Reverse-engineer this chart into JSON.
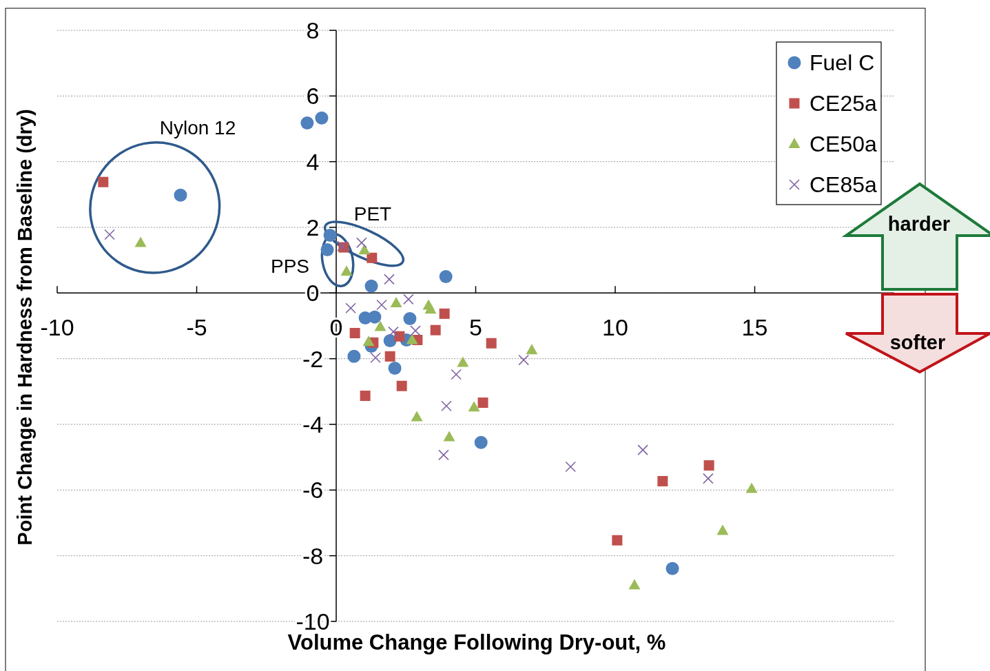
{
  "chart_data": {
    "type": "scatter",
    "xlabel": "Volume Change Following Dry-out, %",
    "ylabel": "Point Change in Hardness from Baseline (dry)",
    "xlim": [
      -10,
      20
    ],
    "ylim": [
      -10,
      8
    ],
    "xticks": [
      -10,
      -5,
      0,
      5,
      10,
      15
    ],
    "yticks": [
      -10,
      -8,
      -6,
      -4,
      -2,
      0,
      2,
      4,
      6,
      8
    ],
    "grid": "y",
    "legend": "top right",
    "series": [
      {
        "name": "Fuel C",
        "color": "#4f81bd",
        "marker": "circle",
        "x": [
          -1.04,
          -0.52,
          -5.58,
          -0.22,
          -0.32,
          1.26,
          3.93,
          1.04,
          1.38,
          2.64,
          1.93,
          2.52,
          1.26,
          0.64,
          2.1,
          5.19,
          12.05
        ],
        "values": [
          5.18,
          5.33,
          2.98,
          1.76,
          1.32,
          0.21,
          0.5,
          -0.76,
          -0.73,
          -0.78,
          -1.45,
          -1.43,
          -1.62,
          -1.93,
          -2.29,
          -4.55,
          -8.39
        ]
      },
      {
        "name": "CE25a",
        "color": "#c0504d",
        "marker": "square",
        "x": [
          -8.35,
          0.27,
          1.28,
          3.88,
          3.56,
          0.67,
          2.27,
          2.91,
          1.33,
          5.56,
          1.93,
          1.04,
          2.35,
          5.26,
          13.36,
          11.7,
          10.07
        ],
        "values": [
          3.38,
          1.39,
          1.07,
          -0.63,
          -1.13,
          -1.22,
          -1.32,
          -1.43,
          -1.51,
          -1.53,
          -1.93,
          -3.13,
          -2.83,
          -3.34,
          -5.25,
          -5.73,
          -7.53
        ]
      },
      {
        "name": "CE50a",
        "color": "#9bbb59",
        "marker": "triangle",
        "x": [
          -7.01,
          1.01,
          0.37,
          2.15,
          3.31,
          3.38,
          1.58,
          1.16,
          2.72,
          4.54,
          7.01,
          4.94,
          2.89,
          4.05,
          14.89,
          13.85,
          10.69
        ],
        "values": [
          1.53,
          1.3,
          0.65,
          -0.31,
          -0.38,
          -0.5,
          -1.03,
          -1.49,
          -1.43,
          -2.12,
          -1.74,
          -3.48,
          -3.78,
          -4.39,
          -5.96,
          -7.24,
          -8.9
        ]
      },
      {
        "name": "CE85a",
        "color": "#8064a2",
        "marker": "cross",
        "x": [
          -8.12,
          0.91,
          0.22,
          1.9,
          0.52,
          1.63,
          2.59,
          2.05,
          2.84,
          1.41,
          4.3,
          6.72,
          3.95,
          3.85,
          8.4,
          10.99,
          13.33
        ],
        "values": [
          1.78,
          1.53,
          1.43,
          0.42,
          -0.46,
          -0.36,
          -0.19,
          -1.18,
          -1.15,
          -1.97,
          -2.48,
          -2.04,
          -3.44,
          -4.93,
          -5.29,
          -4.78,
          -5.65
        ]
      }
    ],
    "annotations": [
      "Nylon 12",
      "PET",
      "PPS",
      "harder",
      "softer"
    ]
  }
}
